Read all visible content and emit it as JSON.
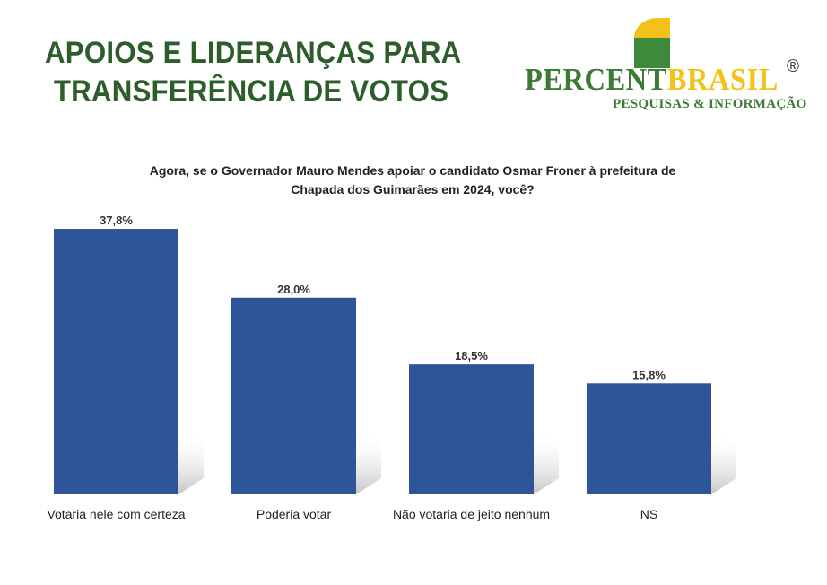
{
  "header": {
    "title_line1": "APOIOS E LIDERANÇAS PARA",
    "title_line2": "TRANSFERÊNCIA DE VOTOS"
  },
  "logo": {
    "part1": "PERCENT",
    "part2": "BRASIL",
    "registered": "®",
    "tagline": "PESQUISAS & INFORMAÇÃO"
  },
  "colors": {
    "title": "#2e5d2c",
    "bar": "#2e5597",
    "logo_green": "#3d7a35",
    "logo_yellow": "#f2c21b"
  },
  "chart_data": {
    "type": "bar",
    "title": "Agora, se o Governador Mauro Mendes apoiar o candidato Osmar Froner à prefeitura de Chapada dos Guimarães em 2024, você?",
    "title_line1": "Agora, se o Governador Mauro Mendes apoiar o candidato Osmar Froner à prefeitura de",
    "title_line2": "Chapada dos Guimarães em 2024, você?",
    "categories": [
      "Votaria nele com certeza",
      "Poderia votar",
      "Não votaria de jeito nenhum",
      "NS"
    ],
    "values": [
      37.8,
      28.0,
      18.5,
      15.8
    ],
    "labels": [
      "37,8%",
      "28,0%",
      "18,5%",
      "15,8%"
    ],
    "unit": "%",
    "ylim": [
      0,
      40
    ],
    "grid": false,
    "legend": "none"
  }
}
